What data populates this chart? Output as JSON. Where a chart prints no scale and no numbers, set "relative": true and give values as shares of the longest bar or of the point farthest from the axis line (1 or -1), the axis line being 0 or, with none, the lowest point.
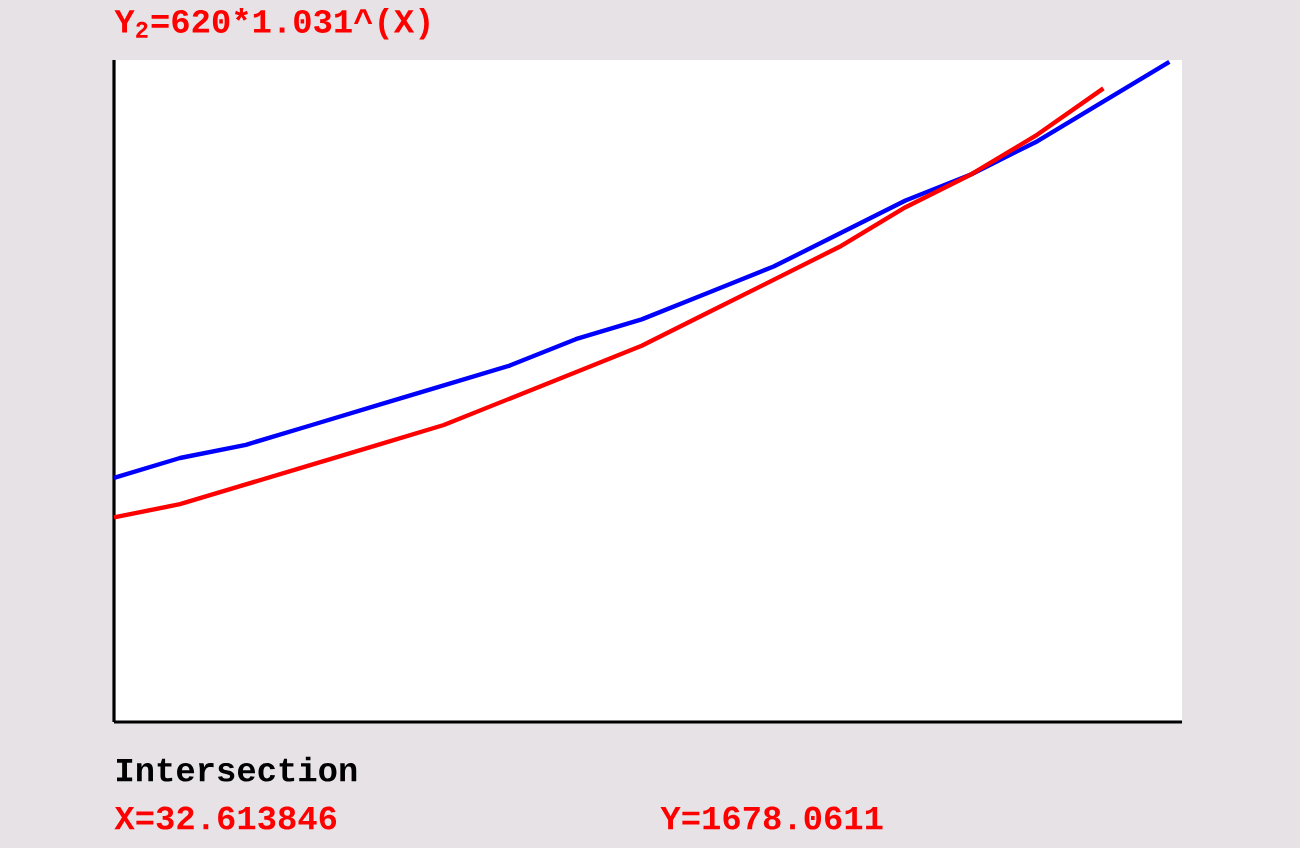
{
  "chart_data": {
    "type": "line",
    "title": "Y$_{2}$=620*1.031^(X)",
    "relative": true,
    "categories": [
      null,
      null,
      null,
      null,
      null,
      null,
      null,
      null,
      null,
      null,
      null,
      null,
      null,
      null,
      null,
      null,
      null
    ],
    "series": [
      {
        "color": "#0000ff",
        "values": [
          0.37,
          0.4,
          0.42,
          0.45,
          0.48,
          0.51,
          0.54,
          0.58,
          0.61,
          0.65,
          0.69,
          0.74,
          0.79,
          0.83,
          0.88,
          0.94,
          1.0
        ]
      },
      {
        "color": "#ff0000",
        "values": [
          0.31,
          0.33,
          0.36,
          0.39,
          0.42,
          0.45,
          0.49,
          0.53,
          0.57,
          0.62,
          0.67,
          0.72,
          0.78,
          0.83,
          0.89,
          0.96,
          null
        ]
      }
    ],
    "annotations": [
      "Intersection",
      "X=32.613846",
      "Y=1678.0611"
    ]
  }
}
